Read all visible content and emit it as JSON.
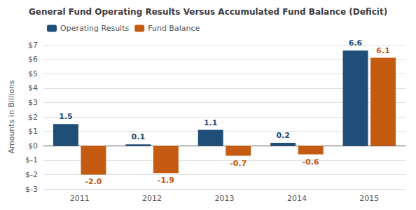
{
  "chart_data": {
    "type": "bar",
    "title": "General Fund Operating Results Versus Accumulated Fund Balance (Deficit)",
    "categories": [
      "2011",
      "2012",
      "2013",
      "2014",
      "2015"
    ],
    "series": [
      {
        "name": "Operating Results",
        "color": "#1F4E79",
        "values": [
          1.5,
          0.1,
          1.1,
          0.2,
          6.6
        ],
        "value_labels": [
          "1.5",
          "0.1",
          "1.1",
          "0.2",
          "6.6"
        ]
      },
      {
        "name": "Fund Balance",
        "color": "#C55A11",
        "values": [
          -2.0,
          -1.9,
          -0.7,
          -0.6,
          6.1
        ],
        "value_labels": [
          "-2.0",
          "-1.9",
          "-0.7",
          "-0.6",
          "6.1"
        ]
      }
    ],
    "ylabel": "Amounts in Billions",
    "ylim": [
      -3,
      7
    ],
    "yticks": [
      {
        "value": -3,
        "label": "$-3"
      },
      {
        "value": -2,
        "label": "$-2"
      },
      {
        "value": -1,
        "label": "$-1"
      },
      {
        "value": 0,
        "label": "$0"
      },
      {
        "value": 1,
        "label": "$1"
      },
      {
        "value": 2,
        "label": "$2"
      },
      {
        "value": 3,
        "label": "$3"
      },
      {
        "value": 4,
        "label": "$4"
      },
      {
        "value": 5,
        "label": "$5"
      },
      {
        "value": 6,
        "label": "$6"
      },
      {
        "value": 7,
        "label": "$7"
      }
    ],
    "grid": true,
    "legend": "upper left",
    "data_labels": true
  }
}
